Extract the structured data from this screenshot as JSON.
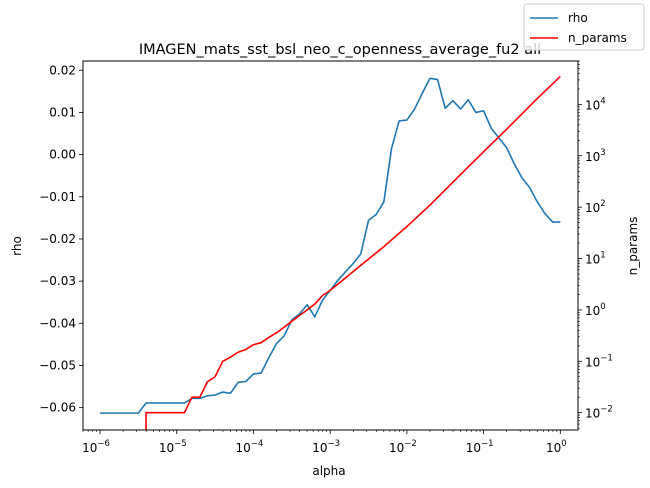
{
  "chart_data": {
    "type": "line",
    "title": "IMAGEN_mats_sst_bsl_neo_c_openness_average_fu2 all",
    "xlabel": "alpha",
    "ylabel": "rho",
    "y2label": "n_params",
    "xscale": "log",
    "y2scale": "log",
    "xlim": [
      6e-07,
      1.7
    ],
    "ylim": [
      -0.0653,
      0.0222
    ],
    "y2lim": [
      0.0046,
      70000
    ],
    "xticks": [
      {
        "value": 1e-06,
        "mant": "10",
        "exp": "−6"
      },
      {
        "value": 1e-05,
        "mant": "10",
        "exp": "−5"
      },
      {
        "value": 0.0001,
        "mant": "10",
        "exp": "−4"
      },
      {
        "value": 0.001,
        "mant": "10",
        "exp": "−3"
      },
      {
        "value": 0.01,
        "mant": "10",
        "exp": "−2"
      },
      {
        "value": 0.1,
        "mant": "10",
        "exp": "−1"
      },
      {
        "value": 1,
        "mant": "10",
        "exp": "0"
      }
    ],
    "yticks": [
      {
        "value": 0.02,
        "label": "0.02"
      },
      {
        "value": 0.01,
        "label": "0.01"
      },
      {
        "value": 0.0,
        "label": "0.00"
      },
      {
        "value": -0.01,
        "label": "−0.01"
      },
      {
        "value": -0.02,
        "label": "−0.02"
      },
      {
        "value": -0.03,
        "label": "−0.03"
      },
      {
        "value": -0.04,
        "label": "−0.04"
      },
      {
        "value": -0.05,
        "label": "−0.05"
      },
      {
        "value": -0.06,
        "label": "−0.06"
      }
    ],
    "y2ticks": [
      {
        "value": 0.01,
        "mant": "10",
        "exp": "−2"
      },
      {
        "value": 0.1,
        "mant": "10",
        "exp": "−1"
      },
      {
        "value": 1,
        "mant": "10",
        "exp": "0"
      },
      {
        "value": 10,
        "mant": "10",
        "exp": "1"
      },
      {
        "value": 100,
        "mant": "10",
        "exp": "2"
      },
      {
        "value": 1000,
        "mant": "10",
        "exp": "3"
      },
      {
        "value": 10000,
        "mant": "10",
        "exp": "4"
      }
    ],
    "legend": "top-right",
    "grid": false,
    "series": [
      {
        "name": "rho",
        "axis": "left",
        "color": "#1f77b4",
        "x": [
          1e-06,
          1.26e-06,
          1.58e-06,
          2e-06,
          2.51e-06,
          3.16e-06,
          3.98e-06,
          5.01e-06,
          6.31e-06,
          7.94e-06,
          1e-05,
          1.26e-05,
          1.58e-05,
          2e-05,
          2.51e-05,
          3.16e-05,
          3.98e-05,
          5.01e-05,
          6.31e-05,
          7.94e-05,
          0.0001,
          0.000126,
          0.000158,
          0.0002,
          0.000251,
          0.000316,
          0.000398,
          0.000501,
          0.000631,
          0.000794,
          0.001,
          0.00126,
          0.00158,
          0.002,
          0.00251,
          0.00316,
          0.00398,
          0.00501,
          0.00631,
          0.00794,
          0.01,
          0.0126,
          0.0158,
          0.02,
          0.0251,
          0.0316,
          0.0398,
          0.0501,
          0.0631,
          0.0794,
          0.1,
          0.126,
          0.158,
          0.2,
          0.251,
          0.316,
          0.398,
          0.501,
          0.631,
          0.794,
          1.0
        ],
        "y": [
          -0.0613,
          -0.0613,
          -0.0613,
          -0.0613,
          -0.0613,
          -0.0613,
          -0.0589,
          -0.0589,
          -0.0589,
          -0.0589,
          -0.0589,
          -0.0589,
          -0.0578,
          -0.0578,
          -0.0572,
          -0.057,
          -0.0563,
          -0.0566,
          -0.054,
          -0.0538,
          -0.052,
          -0.0518,
          -0.0482,
          -0.0448,
          -0.043,
          -0.0392,
          -0.0378,
          -0.0356,
          -0.0385,
          -0.0345,
          -0.0322,
          -0.0298,
          -0.0278,
          -0.0258,
          -0.0235,
          -0.0156,
          -0.0142,
          -0.0112,
          0.0015,
          0.008,
          0.0082,
          0.0108,
          0.0145,
          0.0181,
          0.0178,
          0.011,
          0.0128,
          0.0108,
          0.013,
          0.01,
          0.0104,
          0.0062,
          0.004,
          0.0016,
          -0.0022,
          -0.0055,
          -0.0078,
          -0.0112,
          -0.014,
          -0.016,
          -0.016
        ]
      },
      {
        "name": "n_params",
        "axis": "right",
        "color": "#ff0000",
        "x": [
          3.98e-06,
          3.98e-06,
          5.01e-06,
          6.31e-06,
          7.94e-06,
          1e-05,
          1.26e-05,
          1.58e-05,
          2e-05,
          2.51e-05,
          3.16e-05,
          3.98e-05,
          5.01e-05,
          6.31e-05,
          7.94e-05,
          0.0001,
          0.000126,
          0.000158,
          0.0002,
          0.000251,
          0.000316,
          0.000398,
          0.000501,
          0.000631,
          0.000794,
          0.001,
          0.002,
          0.005,
          0.01,
          0.02,
          0.05,
          0.1,
          0.2,
          0.5,
          1.0
        ],
        "y": [
          0.0046,
          0.01,
          0.01,
          0.01,
          0.01,
          0.01,
          0.01,
          0.02,
          0.02,
          0.04,
          0.05,
          0.1,
          0.12,
          0.15,
          0.17,
          0.21,
          0.23,
          0.29,
          0.36,
          0.46,
          0.6,
          0.78,
          1.0,
          1.3,
          1.9,
          2.4,
          5.6,
          17.0,
          42.0,
          110.0,
          430.0,
          1200.0,
          3300.0,
          13000.0,
          35000.0
        ]
      }
    ]
  }
}
